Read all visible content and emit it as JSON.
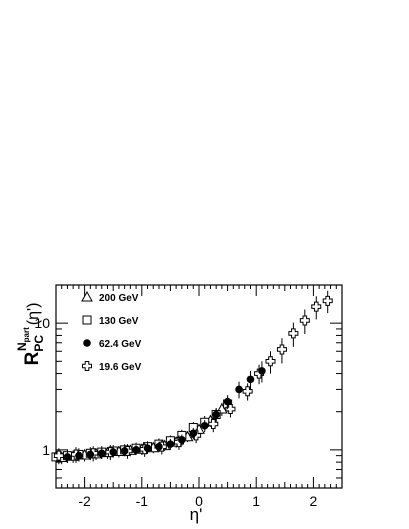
{
  "chart_data": {
    "type": "scatter",
    "xlabel": "η'",
    "ylabel": {
      "main": "R",
      "subscript": "PC",
      "superscript": "N",
      "superscript_sub": "part",
      "argument": "(η')"
    },
    "xlim": [
      -2.5,
      2.5
    ],
    "ylim": [
      0.5,
      20
    ],
    "yscale": "log",
    "xticks": [
      -2,
      -1,
      0,
      1,
      2
    ],
    "xtick_labels": [
      "-2",
      "-1",
      "0",
      "1",
      "2"
    ],
    "yticks": [
      1,
      10
    ],
    "ytick_labels": [
      "1",
      "10"
    ],
    "grid": false,
    "legend_position": "top-left",
    "series": [
      {
        "name": "200 GeV",
        "marker": "triangle-open",
        "x": [
          -2.4,
          -2.2,
          -2.0,
          -1.8,
          -1.6,
          -1.4,
          -1.2,
          -1.0,
          -0.8,
          -0.6,
          -0.4,
          -0.2,
          0.0,
          0.2,
          0.4
        ],
        "y": [
          0.87,
          0.89,
          0.91,
          0.93,
          0.95,
          0.97,
          0.99,
          1.01,
          1.04,
          1.08,
          1.15,
          1.27,
          1.45,
          1.7,
          2.1
        ],
        "err": [
          0.1,
          0.1,
          0.1,
          0.1,
          0.1,
          0.1,
          0.1,
          0.1,
          0.1,
          0.1,
          0.11,
          0.12,
          0.14,
          0.18,
          0.25
        ]
      },
      {
        "name": "130 GeV",
        "marker": "square-open",
        "x": [
          -2.5,
          -2.3,
          -2.1,
          -1.9,
          -1.7,
          -1.5,
          -1.3,
          -1.1,
          -0.9,
          -0.7,
          -0.5,
          -0.3,
          -0.1,
          0.1,
          0.3,
          0.5
        ],
        "y": [
          0.88,
          0.9,
          0.92,
          0.94,
          0.96,
          0.98,
          1.0,
          1.03,
          1.06,
          1.11,
          1.18,
          1.3,
          1.5,
          1.65,
          1.9,
          2.3
        ],
        "err": [
          0.11,
          0.11,
          0.11,
          0.11,
          0.11,
          0.11,
          0.11,
          0.11,
          0.11,
          0.12,
          0.12,
          0.14,
          0.16,
          0.2,
          0.24,
          0.3
        ]
      },
      {
        "name": "62.4 GeV",
        "marker": "circle-filled",
        "x": [
          -2.3,
          -2.1,
          -1.9,
          -1.7,
          -1.5,
          -1.3,
          -1.1,
          -0.9,
          -0.7,
          -0.5,
          -0.3,
          -0.1,
          0.1,
          0.3,
          0.5,
          0.7,
          0.9,
          1.1
        ],
        "y": [
          0.88,
          0.9,
          0.92,
          0.94,
          0.96,
          0.98,
          1.0,
          1.03,
          1.06,
          1.11,
          1.2,
          1.35,
          1.55,
          1.9,
          2.4,
          3.0,
          3.6,
          4.2
        ],
        "err": [
          0.09,
          0.09,
          0.09,
          0.09,
          0.09,
          0.09,
          0.09,
          0.1,
          0.1,
          0.11,
          0.12,
          0.14,
          0.17,
          0.22,
          0.3,
          0.45,
          0.6,
          0.8
        ]
      },
      {
        "name": "19.6 GeV",
        "marker": "cross-open",
        "x": [
          -2.45,
          -2.15,
          -1.85,
          -1.55,
          -1.25,
          -0.95,
          -0.65,
          -0.35,
          -0.05,
          0.25,
          0.55,
          0.85,
          1.05,
          1.25,
          1.45,
          1.65,
          1.85,
          2.05,
          2.25
        ],
        "y": [
          0.9,
          0.92,
          0.94,
          0.96,
          0.98,
          1.01,
          1.06,
          1.15,
          1.3,
          1.6,
          2.1,
          2.9,
          4.0,
          5.0,
          6.2,
          8.3,
          10.5,
          13.5,
          15.0
        ],
        "err": [
          0.13,
          0.13,
          0.13,
          0.13,
          0.13,
          0.13,
          0.14,
          0.15,
          0.17,
          0.22,
          0.3,
          0.45,
          0.7,
          1.0,
          1.4,
          1.8,
          2.3,
          2.8,
          3.0
        ]
      }
    ]
  }
}
